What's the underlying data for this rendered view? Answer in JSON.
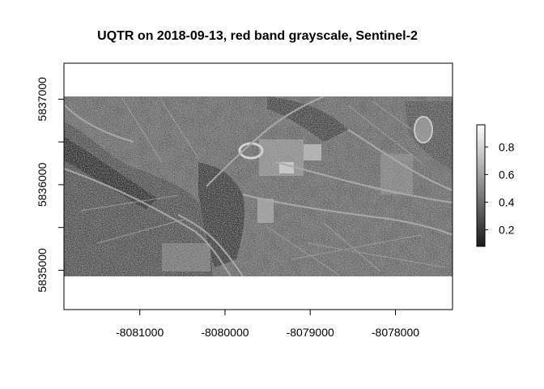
{
  "title": "UQTR on 2018-09-13, red band grayscale, Sentinel-2",
  "map": {
    "x_ticks": [
      "-8081000",
      "-8080000",
      "-8079000",
      "-8078000"
    ],
    "y_ticks": [
      "5835000",
      "5836000",
      "5837000"
    ],
    "x_tick_values": [
      -8081000,
      -8080000,
      -8079000,
      -8078000
    ],
    "y_tick_values": [
      5835000,
      5836000,
      5837000
    ],
    "xlim": [
      -8081890,
      -8077330
    ],
    "ylim": [
      5834540,
      5837420
    ],
    "raster_extent": {
      "x": [
        -8081890,
        -8077330
      ],
      "y": [
        5834930,
        5837050
      ]
    },
    "color_scale": "grayscale",
    "background": "#ffffff"
  },
  "legend": {
    "labels": [
      "0.2",
      "0.4",
      "0.6",
      "0.8"
    ],
    "values": [
      0.2,
      0.4,
      0.6,
      0.8
    ],
    "range": [
      0.08,
      0.96
    ],
    "placement": "right",
    "colors": {
      "low": "#1a1a1a",
      "high": "#ffffff"
    }
  }
}
